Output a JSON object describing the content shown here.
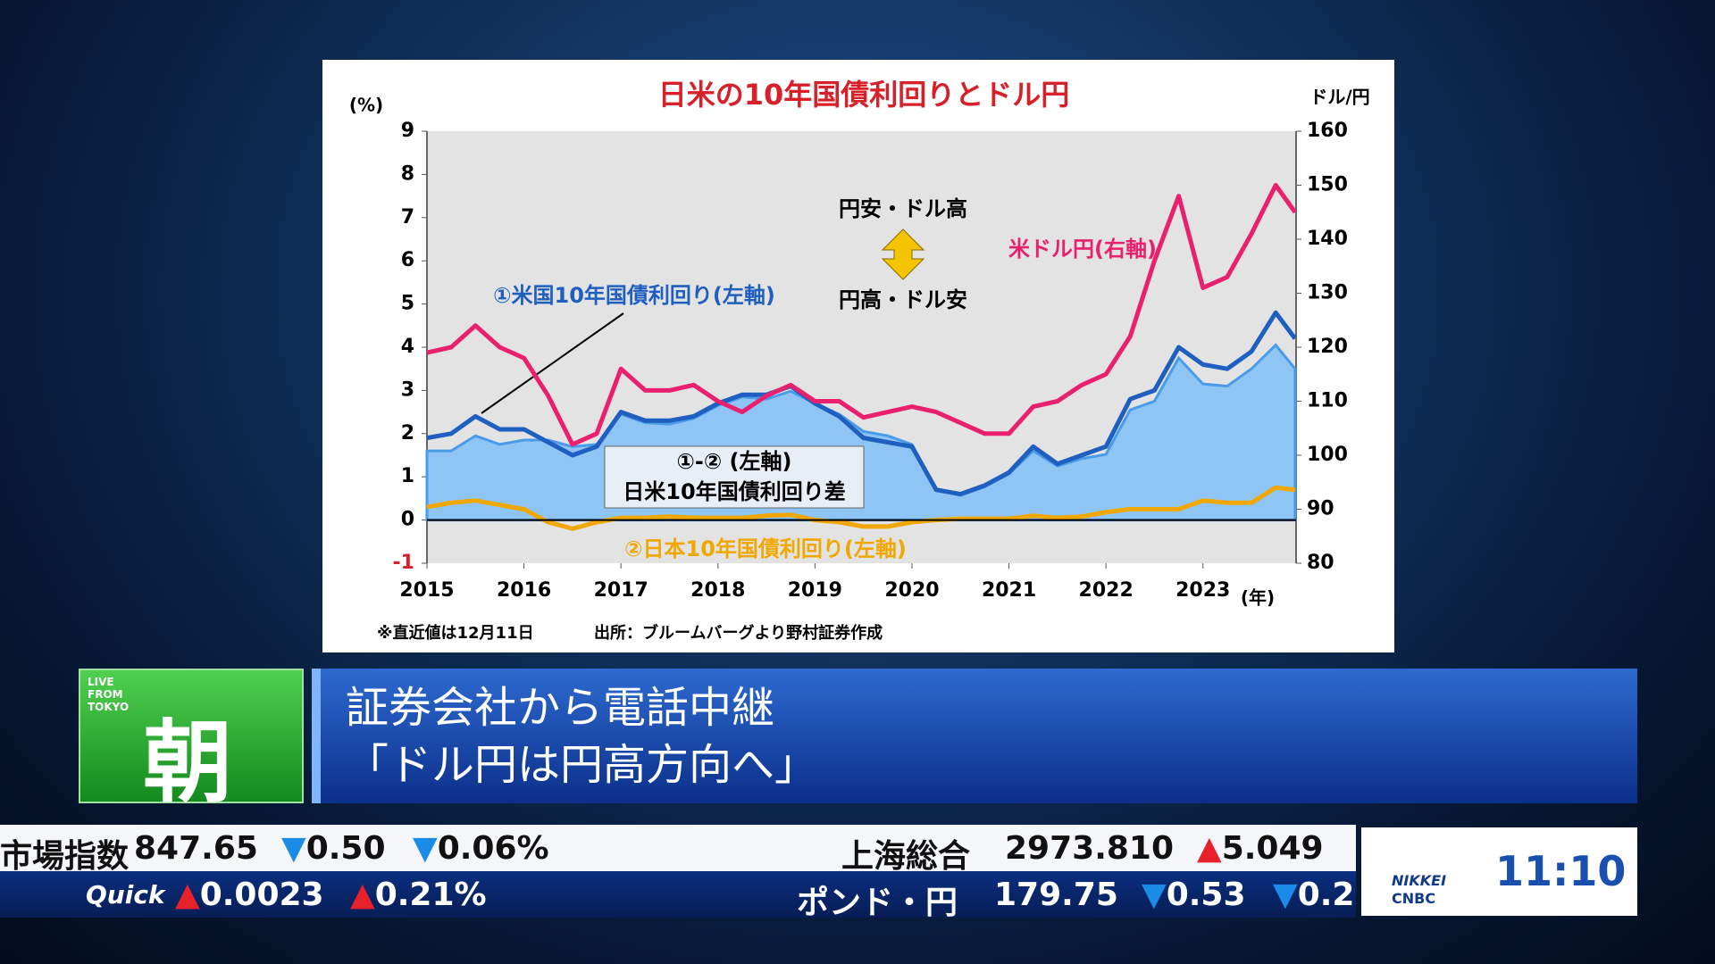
{
  "chart_data": {
    "type": "line",
    "title": "日米の10年国債利回りとドル円",
    "y_label": "(%)",
    "y2_label": "ドル/円",
    "x_unit": "(年)",
    "xlim": [
      2015,
      2023.96
    ],
    "xticks": [
      2015,
      2016,
      2017,
      2018,
      2019,
      2020,
      2021,
      2022,
      2023
    ],
    "ylim": [
      -1,
      9
    ],
    "yticks": [
      -1,
      0,
      1,
      2,
      3,
      4,
      5,
      6,
      7,
      8,
      9
    ],
    "y2lim": [
      80,
      160
    ],
    "y2ticks": [
      80,
      90,
      100,
      110,
      120,
      130,
      140,
      150,
      160
    ],
    "x": [
      2015,
      2015.25,
      2015.5,
      2015.75,
      2016,
      2016.25,
      2016.5,
      2016.75,
      2017,
      2017.25,
      2017.5,
      2017.75,
      2018,
      2018.25,
      2018.5,
      2018.75,
      2019,
      2019.25,
      2019.5,
      2019.75,
      2020,
      2020.25,
      2020.5,
      2020.75,
      2021,
      2021.25,
      2021.5,
      2021.75,
      2022,
      2022.25,
      2022.5,
      2022.75,
      2023,
      2023.25,
      2023.5,
      2023.75,
      2023.95
    ],
    "series": [
      {
        "name": "日米10年国債利回り差",
        "axis_note": "①-② (左軸)",
        "kind": "area",
        "color": "#8ec5f5",
        "values": [
          1.6,
          1.6,
          1.95,
          1.75,
          1.85,
          1.85,
          1.7,
          1.75,
          2.45,
          2.25,
          2.22,
          2.35,
          2.65,
          2.85,
          2.8,
          2.98,
          2.7,
          2.45,
          2.05,
          1.95,
          1.75,
          0.7,
          0.57,
          0.77,
          1.07,
          1.6,
          1.25,
          1.42,
          1.52,
          2.55,
          2.75,
          3.75,
          3.15,
          3.1,
          3.5,
          4.05,
          3.5
        ]
      },
      {
        "name": "①米国10年国債利回り(左軸)",
        "color": "#1f5fbf",
        "values": [
          1.9,
          2.0,
          2.4,
          2.1,
          2.1,
          1.8,
          1.5,
          1.7,
          2.5,
          2.3,
          2.3,
          2.4,
          2.7,
          2.9,
          2.9,
          3.1,
          2.7,
          2.4,
          1.9,
          1.8,
          1.7,
          0.7,
          0.6,
          0.8,
          1.1,
          1.7,
          1.3,
          1.5,
          1.7,
          2.8,
          3.0,
          4.0,
          3.6,
          3.5,
          3.9,
          4.8,
          4.2
        ]
      },
      {
        "name": "②日本10年国債利回り(左軸)",
        "color": "#f0a800",
        "values": [
          0.3,
          0.4,
          0.45,
          0.35,
          0.25,
          -0.05,
          -0.2,
          -0.05,
          0.05,
          0.05,
          0.08,
          0.05,
          0.05,
          0.05,
          0.1,
          0.12,
          0.0,
          -0.05,
          -0.15,
          -0.15,
          -0.05,
          0.0,
          0.03,
          0.03,
          0.03,
          0.1,
          0.05,
          0.08,
          0.18,
          0.25,
          0.25,
          0.25,
          0.45,
          0.4,
          0.4,
          0.75,
          0.7
        ]
      },
      {
        "name": "米ドル円(右軸)",
        "color": "#e8206e",
        "axis": "y2",
        "values": [
          119,
          120,
          124,
          120,
          118,
          111,
          102,
          104,
          116,
          112,
          112,
          113,
          110,
          108,
          111,
          113,
          110,
          110,
          107,
          108,
          109,
          108,
          106,
          104,
          104,
          109,
          110,
          113,
          115,
          122,
          136,
          148,
          131,
          133,
          141,
          150,
          145
        ]
      }
    ],
    "annotations": [
      "円安・ドル高",
      "円高・ドル安"
    ],
    "note": "※直近値は12月11日",
    "source": "出所：ブルームバーグより野村証券作成"
  },
  "program": {
    "live": [
      "LIVE",
      "FROM",
      "TOKYO"
    ],
    "name": "朝",
    "headline": [
      "証券会社から電話中継",
      "「ドル円は円高方向へ」"
    ]
  },
  "ticker": {
    "row1": [
      "市場指数",
      "847.65",
      "▼0.50",
      "▼0.06%",
      "上海総合",
      "2973.810",
      "▲5.049"
    ],
    "row2": [
      "Quick",
      "▲0.0023",
      "▲0.21%",
      "ポンド・円",
      "179.75",
      "▼0.53",
      "▼0.2"
    ]
  },
  "clock": "11:10",
  "logo": [
    "NIKKEI",
    "CNBC"
  ]
}
